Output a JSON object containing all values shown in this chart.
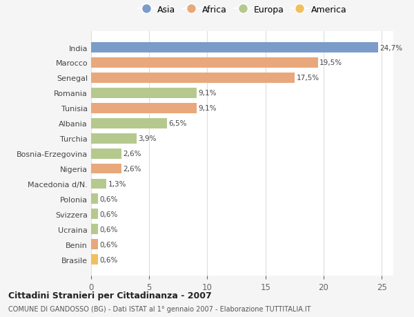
{
  "countries": [
    "India",
    "Marocco",
    "Senegal",
    "Romania",
    "Tunisia",
    "Albania",
    "Turchia",
    "Bosnia-Erzegovina",
    "Nigeria",
    "Macedonia d/N.",
    "Polonia",
    "Svizzera",
    "Ucraina",
    "Benin",
    "Brasile"
  ],
  "values": [
    24.7,
    19.5,
    17.5,
    9.1,
    9.1,
    6.5,
    3.9,
    2.6,
    2.6,
    1.3,
    0.6,
    0.6,
    0.6,
    0.6,
    0.6
  ],
  "labels": [
    "24,7%",
    "19,5%",
    "17,5%",
    "9,1%",
    "9,1%",
    "6,5%",
    "3,9%",
    "2,6%",
    "2,6%",
    "1,3%",
    "0,6%",
    "0,6%",
    "0,6%",
    "0,6%",
    "0,6%"
  ],
  "continents": [
    "Asia",
    "Africa",
    "Africa",
    "Europa",
    "Africa",
    "Europa",
    "Europa",
    "Europa",
    "Africa",
    "Europa",
    "Europa",
    "Europa",
    "Europa",
    "Africa",
    "America"
  ],
  "colors": {
    "Asia": "#7b9cc9",
    "Africa": "#e8a87c",
    "Europa": "#b5c98e",
    "America": "#f0c060"
  },
  "legend_order": [
    "Asia",
    "Africa",
    "Europa",
    "America"
  ],
  "xlim": [
    0,
    26
  ],
  "xticks": [
    0,
    5,
    10,
    15,
    20,
    25
  ],
  "title1": "Cittadini Stranieri per Cittadinanza - 2007",
  "title2": "COMUNE DI GANDOSSO (BG) - Dati ISTAT al 1° gennaio 2007 - Elaborazione TUTTITALIA.IT",
  "background_color": "#f5f5f5",
  "bar_background": "#ffffff",
  "grid_color": "#dddddd"
}
